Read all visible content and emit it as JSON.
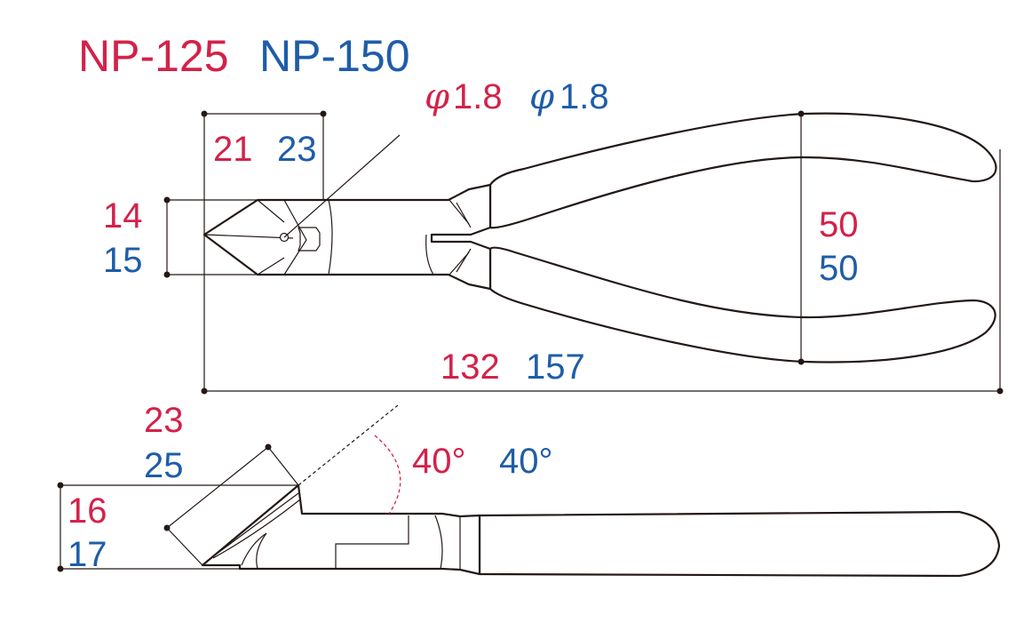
{
  "models": [
    {
      "name": "NP-125",
      "color": "#d3224a"
    },
    {
      "name": "NP-150",
      "color": "#1f5da8"
    }
  ],
  "dimensions": {
    "wire_dia": {
      "np125": "φ1.8",
      "np150": "φ1.8",
      "phi_symbol": "φ",
      "np125_value": "1.8",
      "np150_value": "1.8"
    },
    "jaw_length": {
      "np125": "21",
      "np150": "23"
    },
    "jaw_width": {
      "np125": "14",
      "np150": "15"
    },
    "handle_span": {
      "np125": "50",
      "np150": "50"
    },
    "overall_length": {
      "np125": "132",
      "np150": "157"
    },
    "blade_length": {
      "np125": "23",
      "np150": "25"
    },
    "head_height": {
      "np125": "16",
      "np150": "17"
    },
    "blade_angle": {
      "np125": "40°",
      "np150": "40°"
    }
  }
}
